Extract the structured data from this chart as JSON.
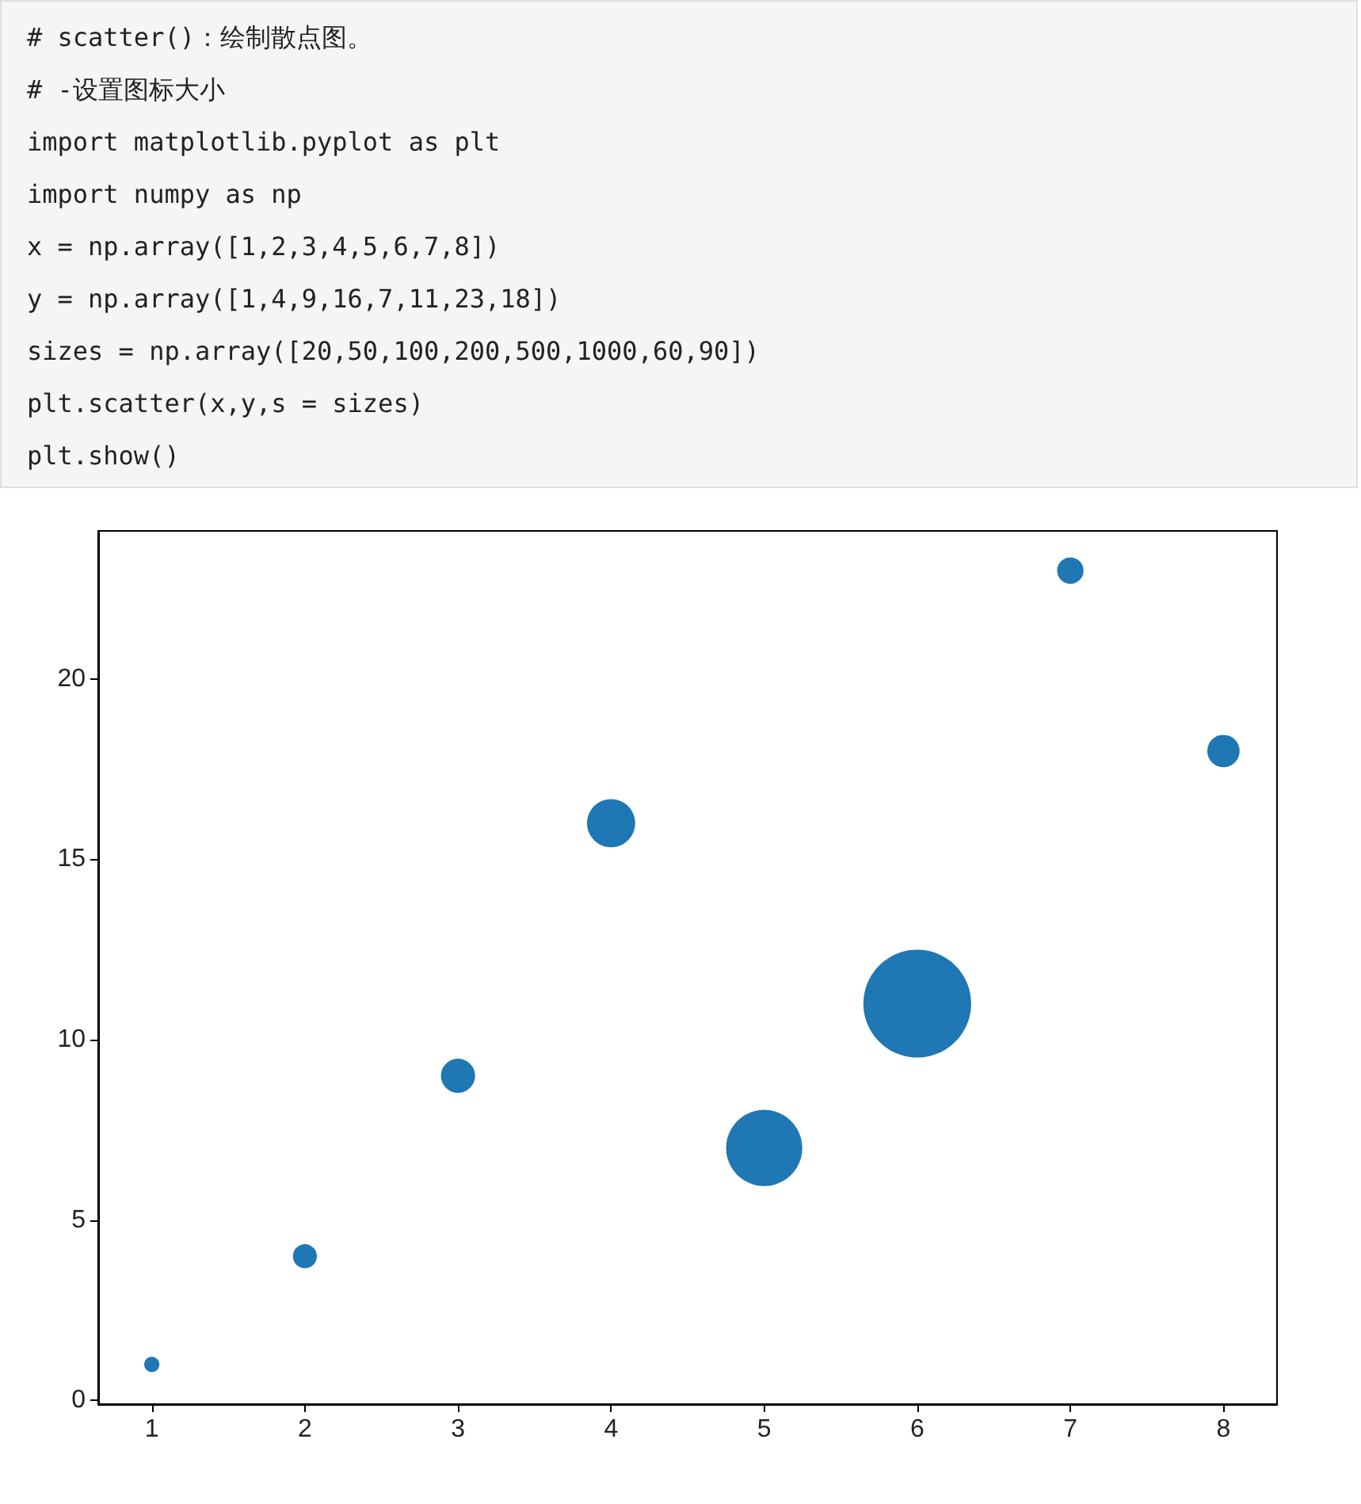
{
  "chart_data": {
    "type": "bubble",
    "annotations": [
      "# scatter()：绘制散点图。",
      "# -设置图标大小",
      "import matplotlib.pyplot as plt",
      "import numpy as np",
      "x = np.array([1,2,3,4,5,6,7,8])",
      "y = np.array([1,4,9,16,7,11,23,18])",
      "sizes = np.array([20,50,100,200,500,1000,60,90])",
      "plt.scatter(x,y,s = sizes)",
      "plt.show()"
    ],
    "x": [
      1,
      2,
      3,
      4,
      5,
      6,
      7,
      8
    ],
    "values": [
      1,
      4,
      9,
      16,
      7,
      11,
      23,
      18
    ],
    "sizes": [
      0.02,
      0.05,
      0.1,
      0.2,
      0.5,
      1,
      0.06,
      0.09
    ],
    "color": "#1f77b4",
    "marker": "circle",
    "xlim": [
      0.65,
      8.35
    ],
    "xticks": [
      1,
      2,
      3,
      4,
      5,
      6,
      7,
      8
    ],
    "ylim": [
      -0.1,
      24.1
    ],
    "yticks": [
      0,
      5,
      10,
      15,
      20
    ],
    "grid": false
  }
}
